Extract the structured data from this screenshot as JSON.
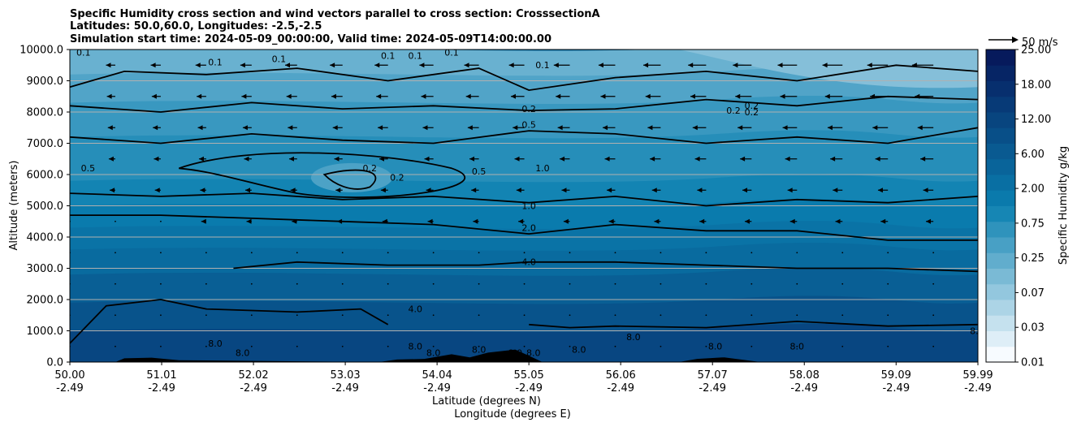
{
  "chart_data": {
    "type": "contourf",
    "title_lines": [
      "Specific Humidity cross section and wind vectors parallel to cross section: CrosssectionA",
      "Latitudes: 50.0,60.0, Longitudes: -2.5,-2.5",
      "Simulation start time: 2024-05-09_00:00:00, Valid time: 2024-05-09T14:00:00.00"
    ],
    "ylabel": "Altitude (meters)",
    "xlabel_lines": [
      "Latitude (degrees N)",
      "Longitude (degrees E)"
    ],
    "ylim": [
      0,
      10000
    ],
    "xlim": [
      50.0,
      59.99
    ],
    "y_ticks": [
      0,
      1000,
      2000,
      3000,
      4000,
      5000,
      6000,
      7000,
      8000,
      9000,
      10000
    ],
    "y_tick_labels": [
      "0.0",
      "1000.0",
      "2000.0",
      "3000.0",
      "4000.0",
      "5000.0",
      "6000.0",
      "7000.0",
      "8000.0",
      "9000.0",
      "10000.0"
    ],
    "x_ticks": [
      50.0,
      51.01,
      52.02,
      53.03,
      54.04,
      55.05,
      56.06,
      57.07,
      58.08,
      59.09,
      59.99
    ],
    "x_tick_lat_labels": [
      "50.00",
      "51.01",
      "52.02",
      "53.03",
      "54.04",
      "55.05",
      "56.06",
      "57.07",
      "58.08",
      "59.09",
      "59.99"
    ],
    "x_tick_lon_labels": [
      "-2.49",
      "-2.49",
      "-2.49",
      "-2.49",
      "-2.49",
      "-2.49",
      "-2.49",
      "-2.49",
      "-2.49",
      "-2.49",
      "-2.49"
    ],
    "grid": "horizontal",
    "colorbar": {
      "label": "Specific Humidity g/kg",
      "tick_labels": [
        "0.01",
        "0.03",
        "0.07",
        "0.25",
        "0.75",
        "2.00",
        "6.00",
        "12.00",
        "18.00",
        "25.00"
      ],
      "n_levels": 20,
      "color_low": "#f7fbff",
      "color_mid": "#0a7fb0",
      "color_high": "#061a5c"
    },
    "quiver_key": "50 m/s",
    "contour_labels": [
      "0.1",
      "0.1",
      "0.1",
      "0.1",
      "0.1",
      "0.1",
      "0.1",
      "0.2",
      "0.2",
      "0.2",
      "0.2",
      "0.2",
      "0.5",
      "0.5",
      "0.5",
      "1.0",
      "1.0",
      "2.0",
      "4.0",
      "4.0",
      "8.0",
      "8.0",
      "8.0",
      "8.0",
      "8.0",
      "8.0",
      "8.0",
      "8.0",
      "8.0",
      "8.0",
      "8.0",
      "8.0",
      "0.2"
    ],
    "terrain_color": "#000000"
  }
}
